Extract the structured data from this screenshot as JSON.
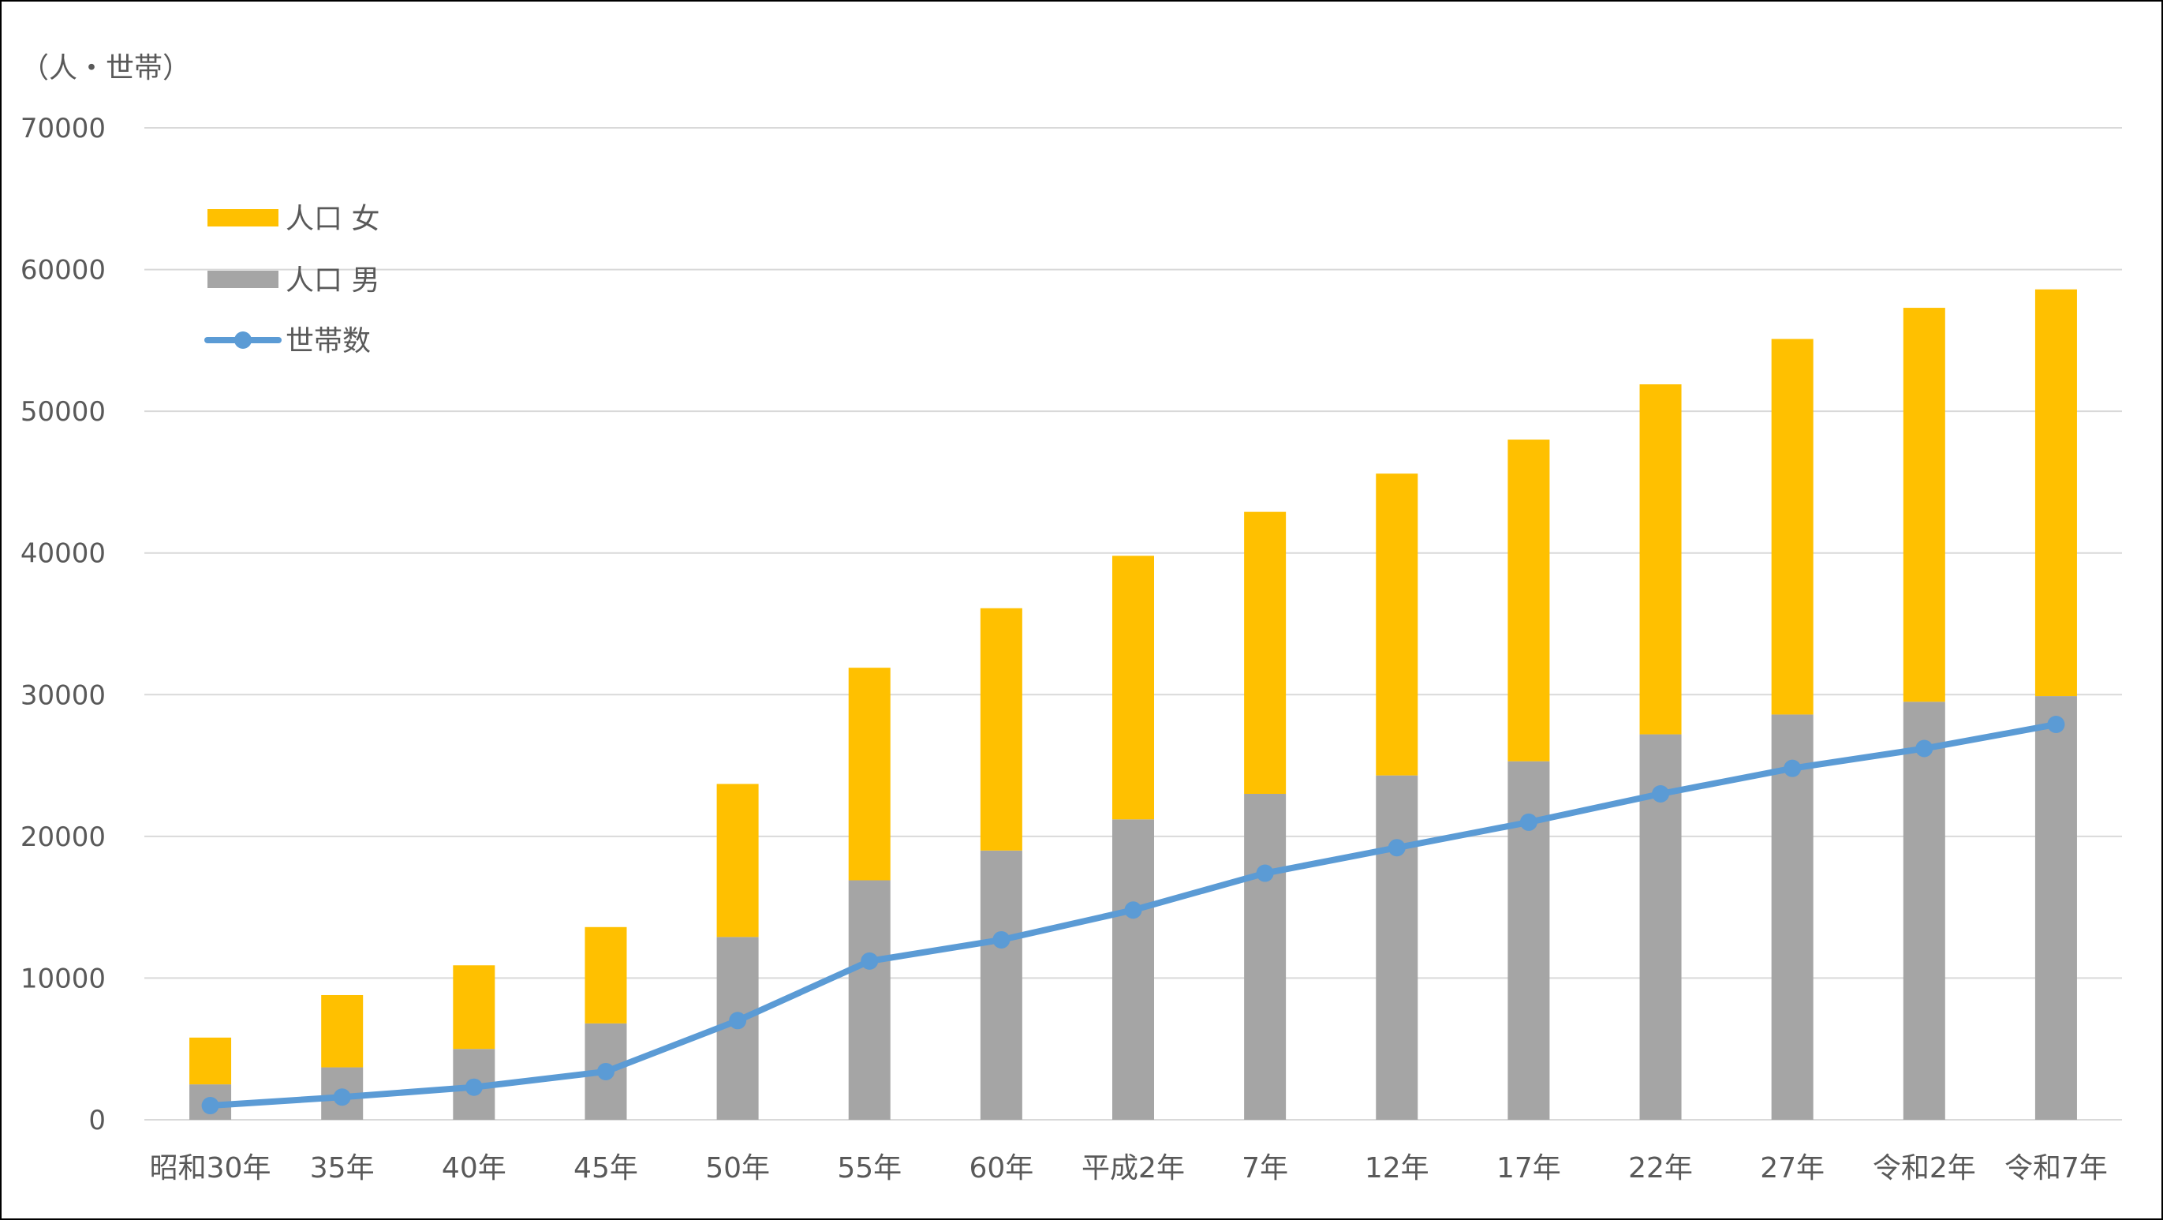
{
  "chart_data": {
    "type": "bar",
    "stacked": true,
    "unit_label": "（人・世帯）",
    "categories": [
      "昭和30年",
      "35年",
      "40年",
      "45年",
      "50年",
      "55年",
      "60年",
      "平成2年",
      "7年",
      "12年",
      "17年",
      "22年",
      "27年",
      "令和2年",
      "令和7年"
    ],
    "series": [
      {
        "name": "人口 男",
        "kind": "bar",
        "color": "#a5a5a5",
        "values": [
          2500,
          3700,
          5000,
          6800,
          12900,
          16900,
          19000,
          21200,
          23000,
          24300,
          25300,
          27200,
          28600,
          29500,
          29900
        ]
      },
      {
        "name": "人口 女",
        "kind": "bar",
        "color": "#ffc000",
        "values": [
          3300,
          5100,
          5900,
          6800,
          10800,
          15000,
          17100,
          18600,
          19900,
          21300,
          22700,
          24700,
          26500,
          27800,
          28700
        ]
      },
      {
        "name": "世帯数",
        "kind": "line",
        "color": "#5b9bd5",
        "values": [
          1000,
          1600,
          2300,
          3400,
          7000,
          11200,
          12700,
          14800,
          17400,
          19200,
          21000,
          23000,
          24800,
          26200,
          27900
        ]
      }
    ],
    "ylim": [
      0,
      70000
    ],
    "yticks": [
      "0",
      "10000",
      "20000",
      "30000",
      "40000",
      "50000",
      "60000",
      "70000"
    ],
    "grid": true,
    "legend_position": "top-left"
  }
}
